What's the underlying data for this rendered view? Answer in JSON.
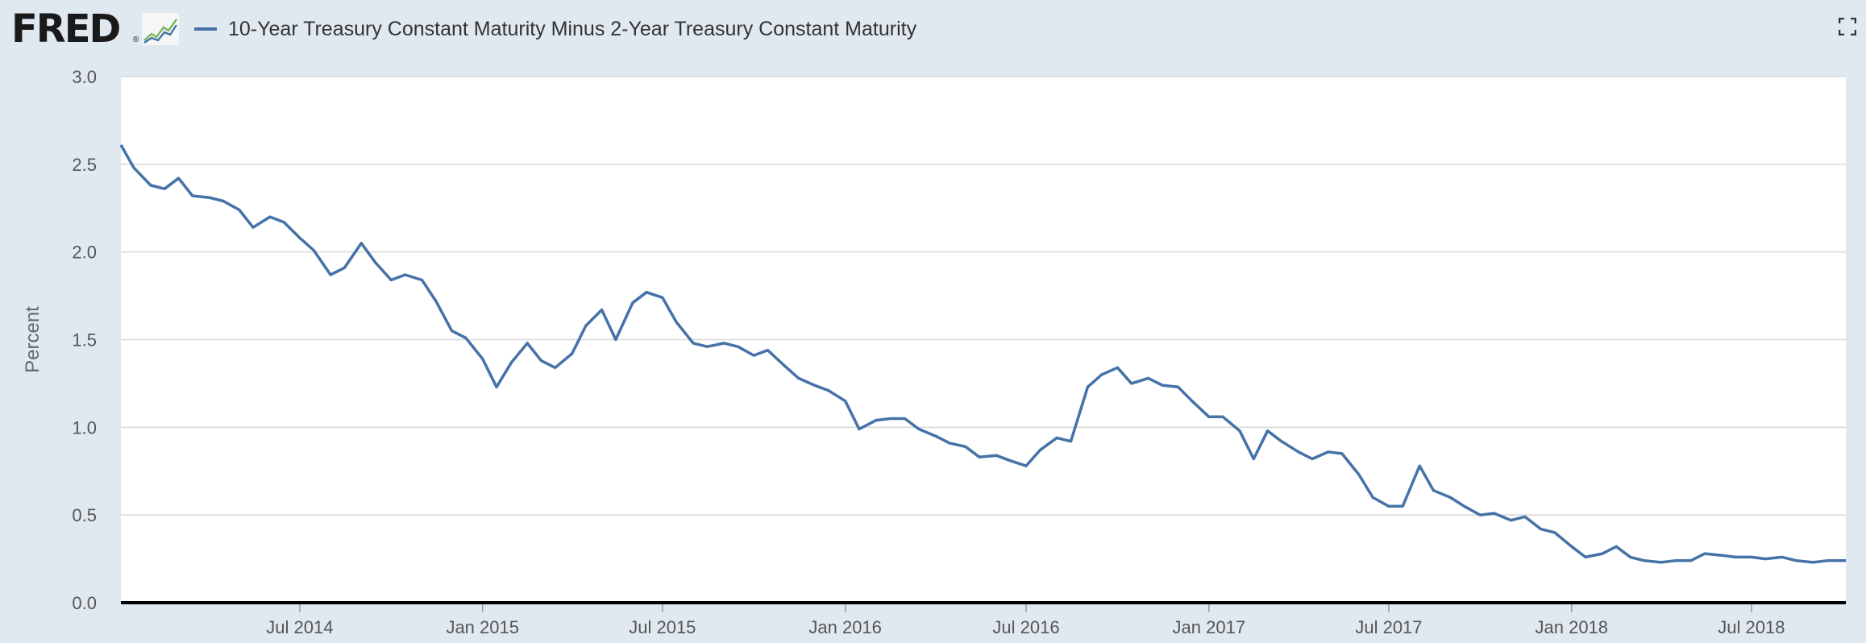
{
  "header": {
    "logo_text": "FRED",
    "logo_registered": "®",
    "series_label": "10-Year Treasury Constant Maturity Minus 2-Year Treasury Constant Maturity"
  },
  "icons": {
    "logo_graph": "fred-graph-icon",
    "fullscreen": "fullscreen-icon"
  },
  "colors": {
    "series": "#4572a7",
    "background": "#e1e9f0",
    "plot_background": "#ffffff",
    "gridline": "#d8d8d8",
    "baseline": "#000000"
  },
  "chart_data": {
    "type": "line",
    "title": "",
    "xlabel": "",
    "ylabel": "Percent",
    "ylim": [
      0.0,
      3.0
    ],
    "yticks": [
      0.0,
      0.5,
      1.0,
      1.5,
      2.0,
      2.5,
      3.0
    ],
    "ytick_labels": [
      "0.0",
      "0.5",
      "1.0",
      "1.5",
      "2.0",
      "2.5",
      "3.0"
    ],
    "xlim": [
      "2014-01-02",
      "2018-10-04"
    ],
    "xticks": [
      "2014-07-01",
      "2015-01-01",
      "2015-07-01",
      "2016-01-01",
      "2016-07-01",
      "2017-01-01",
      "2017-07-01",
      "2018-01-01",
      "2018-07-01"
    ],
    "xtick_labels": [
      "Jul 2014",
      "Jan 2015",
      "Jul 2015",
      "Jan 2016",
      "Jul 2016",
      "Jan 2017",
      "Jul 2017",
      "Jan 2018",
      "Jul 2018"
    ],
    "grid": "horizontal",
    "legend": "top-left",
    "series": [
      {
        "name": "10-Year Treasury Constant Maturity Minus 2-Year Treasury Constant Maturity",
        "x": [
          "2014-01-02",
          "2014-01-15",
          "2014-02-01",
          "2014-02-15",
          "2014-03-01",
          "2014-03-15",
          "2014-04-01",
          "2014-04-15",
          "2014-05-01",
          "2014-05-15",
          "2014-06-01",
          "2014-06-15",
          "2014-07-01",
          "2014-07-15",
          "2014-08-01",
          "2014-08-15",
          "2014-09-01",
          "2014-09-15",
          "2014-10-01",
          "2014-10-15",
          "2014-11-01",
          "2014-11-15",
          "2014-12-01",
          "2014-12-15",
          "2015-01-01",
          "2015-01-15",
          "2015-01-30",
          "2015-02-15",
          "2015-03-01",
          "2015-03-15",
          "2015-04-01",
          "2015-04-15",
          "2015-05-01",
          "2015-05-15",
          "2015-06-01",
          "2015-06-15",
          "2015-07-01",
          "2015-07-15",
          "2015-08-01",
          "2015-08-15",
          "2015-09-01",
          "2015-09-15",
          "2015-10-01",
          "2015-10-15",
          "2015-11-01",
          "2015-11-15",
          "2015-12-01",
          "2015-12-15",
          "2016-01-01",
          "2016-01-15",
          "2016-02-01",
          "2016-02-15",
          "2016-03-01",
          "2016-03-15",
          "2016-04-01",
          "2016-04-15",
          "2016-05-01",
          "2016-05-15",
          "2016-06-01",
          "2016-06-15",
          "2016-07-01",
          "2016-07-15",
          "2016-08-01",
          "2016-08-15",
          "2016-09-01",
          "2016-09-15",
          "2016-10-01",
          "2016-10-15",
          "2016-11-01",
          "2016-11-15",
          "2016-12-01",
          "2016-12-15",
          "2017-01-01",
          "2017-01-15",
          "2017-02-01",
          "2017-02-15",
          "2017-03-01",
          "2017-03-15",
          "2017-04-01",
          "2017-04-15",
          "2017-05-01",
          "2017-05-15",
          "2017-06-01",
          "2017-06-15",
          "2017-07-01",
          "2017-07-15",
          "2017-08-01",
          "2017-08-15",
          "2017-09-01",
          "2017-09-15",
          "2017-10-01",
          "2017-10-15",
          "2017-11-01",
          "2017-11-15",
          "2017-12-01",
          "2017-12-15",
          "2018-01-01",
          "2018-01-15",
          "2018-02-01",
          "2018-02-15",
          "2018-03-01",
          "2018-03-15",
          "2018-04-01",
          "2018-04-15",
          "2018-05-01",
          "2018-05-15",
          "2018-06-01",
          "2018-06-15",
          "2018-07-01",
          "2018-07-15",
          "2018-08-01",
          "2018-08-15",
          "2018-09-01",
          "2018-09-15",
          "2018-10-04"
        ],
        "y": [
          2.61,
          2.48,
          2.38,
          2.36,
          2.42,
          2.32,
          2.31,
          2.29,
          2.24,
          2.14,
          2.2,
          2.17,
          2.08,
          2.01,
          1.87,
          1.91,
          2.05,
          1.94,
          1.84,
          1.87,
          1.84,
          1.72,
          1.55,
          1.51,
          1.39,
          1.23,
          1.37,
          1.48,
          1.38,
          1.34,
          1.42,
          1.58,
          1.67,
          1.5,
          1.71,
          1.77,
          1.74,
          1.6,
          1.48,
          1.46,
          1.48,
          1.46,
          1.41,
          1.44,
          1.35,
          1.28,
          1.24,
          1.21,
          1.15,
          0.99,
          1.04,
          1.05,
          1.05,
          0.99,
          0.95,
          0.91,
          0.89,
          0.83,
          0.84,
          0.81,
          0.78,
          0.87,
          0.94,
          0.92,
          1.23,
          1.3,
          1.34,
          1.25,
          1.28,
          1.24,
          1.23,
          1.15,
          1.06,
          1.06,
          0.98,
          0.82,
          0.98,
          0.92,
          0.86,
          0.82,
          0.86,
          0.85,
          0.73,
          0.6,
          0.55,
          0.55,
          0.78,
          0.64,
          0.6,
          0.55,
          0.5,
          0.51,
          0.47,
          0.49,
          0.42,
          0.4,
          0.32,
          0.26,
          0.28,
          0.32,
          0.26,
          0.24,
          0.23,
          0.24,
          0.24,
          0.28,
          0.27,
          0.26,
          0.26,
          0.25,
          0.26,
          0.24,
          0.23,
          0.24,
          0.24
        ]
      }
    ]
  }
}
